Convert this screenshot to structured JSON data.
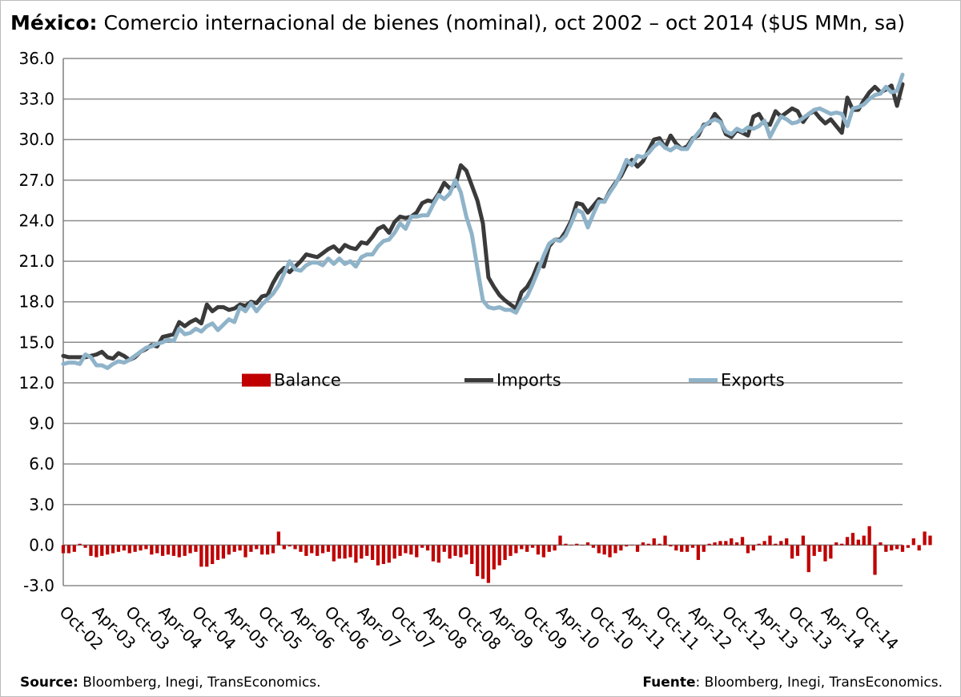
{
  "title_bold": "México:",
  "title_rest": " Comercio internacional de bienes (nominal), oct 2002 – oct 2014 ($US MMn, sa)",
  "source_left_label": "Source:",
  "source_left_text": " Bloomberg, Inegi, TransEconomics.",
  "source_right_label": "Fuente",
  "source_right_text": ": Bloomberg, Inegi, TransEconomics.",
  "colors": {
    "balance": "#c00000",
    "imports": "#3a3a3a",
    "exports": "#8fb3c9",
    "grid": "#8c8c8c"
  },
  "chart_data": {
    "type": "line+bar",
    "ylim": [
      -3,
      36
    ],
    "yticks": [
      "36.0",
      "33.0",
      "30.0",
      "27.0",
      "24.0",
      "21.0",
      "18.0",
      "15.0",
      "12.0",
      "9.0",
      "6.0",
      "3.0",
      "0.0",
      "-3.0"
    ],
    "ytick_values": [
      36,
      33,
      30,
      27,
      24,
      21,
      18,
      15,
      12,
      9,
      6,
      3,
      0,
      -3
    ],
    "xticks": [
      "Oct-02",
      "Apr-03",
      "Oct-03",
      "Apr-04",
      "Oct-04",
      "Apr-05",
      "Oct-05",
      "Apr-06",
      "Oct-06",
      "Apr-07",
      "Oct-07",
      "Apr-08",
      "Oct-08",
      "Apr-09",
      "Oct-09",
      "Apr-10",
      "Oct-10",
      "Apr-11",
      "Oct-11",
      "Apr-12",
      "Oct-12",
      "Apr-13",
      "Oct-13",
      "Apr-14",
      "Oct-14"
    ],
    "grid": true,
    "legend_placement": "center",
    "series": [
      {
        "name": "Balance",
        "type": "bar",
        "values": [
          -0.6,
          -0.6,
          -0.5,
          0.1,
          -0.2,
          -0.8,
          -0.9,
          -0.8,
          -0.7,
          -0.6,
          -0.5,
          -0.4,
          -0.6,
          -0.5,
          -0.4,
          -0.3,
          -0.7,
          -0.6,
          -0.8,
          -0.7,
          -0.8,
          -0.9,
          -0.8,
          -0.6,
          -0.5,
          -1.6,
          -1.6,
          -1.4,
          -1.1,
          -1.0,
          -0.7,
          -0.5,
          -0.4,
          -0.9,
          -0.5,
          -0.3,
          -0.7,
          -0.7,
          -0.6,
          1.0,
          -0.3,
          -0.1,
          -0.3,
          -0.5,
          -0.8,
          -0.6,
          -0.8,
          -0.6,
          -0.5,
          -1.2,
          -1.0,
          -1.0,
          -0.9,
          -1.3,
          -1.0,
          -0.8,
          -1.1,
          -1.5,
          -1.4,
          -1.3,
          -1.0,
          -0.8,
          -0.6,
          -0.7,
          -0.9,
          -0.2,
          -0.4,
          -1.2,
          -1.3,
          -0.5,
          -1.0,
          -0.8,
          -0.9,
          -0.7,
          -1.4,
          -2.3,
          -2.5,
          -2.8,
          -1.8,
          -1.5,
          -1.1,
          -0.8,
          -0.6,
          -0.3,
          -0.5,
          -0.2,
          -0.7,
          -0.9,
          -0.5,
          -0.4,
          0.7,
          0.1,
          0.0,
          0.1,
          0.0,
          0.2,
          -0.2,
          -0.6,
          -0.7,
          -0.9,
          -0.6,
          -0.4,
          -0.1,
          0.0,
          -0.5,
          0.2,
          0.1,
          0.5,
          0.1,
          0.7,
          -0.1,
          -0.4,
          -0.5,
          -0.5,
          -0.2,
          -1.1,
          -0.5,
          0.1,
          0.2,
          0.3,
          0.3,
          0.5,
          0.2,
          0.6,
          -0.6,
          -0.4,
          0.1,
          0.3,
          0.7,
          0.1,
          0.3,
          0.5,
          -1.0,
          -0.8,
          0.7,
          -2.0,
          -0.8,
          -0.5,
          -1.2,
          -1.0,
          0.2,
          0.1,
          0.6,
          0.9,
          0.4,
          0.7,
          1.4,
          -2.2,
          0.2,
          -0.5,
          -0.4,
          -0.3,
          -0.5,
          -0.2,
          0.5,
          -0.4,
          1.0,
          0.7
        ]
      },
      {
        "name": "Imports",
        "type": "line",
        "values": [
          14.0,
          13.9,
          13.9,
          13.9,
          13.9,
          14.0,
          14.1,
          14.3,
          13.9,
          13.8,
          14.2,
          14.0,
          13.7,
          13.9,
          14.3,
          14.5,
          14.8,
          14.7,
          15.4,
          15.5,
          15.6,
          16.5,
          16.2,
          16.5,
          16.7,
          16.4,
          17.8,
          17.3,
          17.6,
          17.6,
          17.4,
          17.5,
          17.8,
          17.7,
          18.0,
          17.9,
          18.4,
          18.5,
          19.4,
          20.1,
          20.5,
          20.2,
          20.6,
          21.0,
          21.5,
          21.4,
          21.3,
          21.6,
          21.9,
          22.1,
          21.7,
          22.2,
          22.0,
          21.9,
          22.4,
          22.3,
          22.8,
          23.4,
          23.6,
          23.1,
          23.9,
          24.3,
          24.2,
          24.3,
          24.6,
          25.3,
          25.5,
          25.4,
          26.0,
          26.8,
          26.4,
          26.6,
          28.1,
          27.7,
          26.6,
          25.5,
          23.8,
          19.8,
          19.1,
          18.5,
          18.1,
          17.8,
          17.5,
          18.7,
          19.1,
          19.8,
          20.8,
          20.6,
          22.1,
          22.6,
          22.6,
          23.2,
          24.0,
          25.3,
          25.2,
          24.6,
          25.1,
          25.6,
          25.4,
          26.2,
          26.8,
          27.3,
          28.1,
          28.5,
          28.0,
          28.4,
          29.2,
          30.0,
          30.1,
          29.4,
          30.3,
          29.7,
          29.3,
          29.5,
          30.1,
          30.3,
          31.1,
          31.2,
          31.9,
          31.4,
          30.4,
          30.2,
          30.7,
          30.5,
          30.3,
          31.7,
          31.9,
          31.2,
          31.1,
          32.1,
          31.7,
          32.0,
          32.3,
          32.1,
          31.3,
          31.9,
          32.1,
          31.6,
          31.2,
          31.5,
          31.0,
          30.5,
          33.1,
          32.2,
          32.2,
          32.9,
          33.5,
          33.9,
          33.5,
          33.7,
          34.0,
          32.5,
          34.1
        ]
      },
      {
        "name": "Exports",
        "type": "line",
        "values": [
          13.4,
          13.5,
          13.5,
          13.4,
          14.1,
          13.9,
          13.3,
          13.3,
          13.1,
          13.4,
          13.6,
          13.5,
          13.7,
          14.0,
          14.3,
          14.6,
          14.7,
          14.9,
          15.0,
          15.2,
          15.1,
          16.0,
          15.6,
          15.7,
          16.0,
          15.8,
          16.2,
          16.4,
          15.9,
          16.3,
          16.7,
          16.5,
          17.6,
          17.3,
          17.9,
          17.3,
          17.8,
          18.2,
          18.6,
          19.2,
          20.1,
          21.0,
          20.4,
          20.3,
          20.7,
          20.9,
          20.9,
          20.7,
          21.2,
          20.8,
          21.2,
          20.8,
          21.0,
          20.6,
          21.3,
          21.5,
          21.5,
          22.1,
          22.5,
          22.6,
          23.1,
          23.8,
          23.4,
          24.3,
          24.3,
          24.4,
          24.4,
          25.2,
          25.9,
          25.6,
          26.0,
          27.0,
          26.1,
          24.3,
          23.0,
          20.5,
          18.1,
          17.6,
          17.5,
          17.6,
          17.4,
          17.4,
          17.2,
          18.0,
          18.4,
          19.3,
          20.3,
          21.4,
          22.3,
          22.6,
          22.5,
          22.9,
          23.8,
          24.8,
          24.6,
          23.5,
          24.5,
          25.4,
          25.4,
          26.1,
          26.7,
          27.5,
          28.5,
          28.1,
          28.8,
          28.7,
          29.0,
          29.5,
          29.8,
          29.4,
          29.2,
          29.5,
          29.3,
          29.3,
          30.0,
          30.5,
          31.0,
          31.3,
          31.5,
          31.3,
          30.6,
          30.4,
          30.8,
          30.6,
          30.9,
          30.8,
          31.0,
          31.4,
          30.2,
          31.0,
          31.7,
          31.5,
          31.2,
          31.3,
          31.6,
          31.9,
          32.2,
          32.3,
          32.1,
          31.9,
          32.0,
          31.9,
          31.0,
          32.3,
          32.4,
          32.6,
          33.0,
          33.3,
          33.4,
          33.9,
          33.5,
          33.6,
          34.8
        ]
      }
    ]
  }
}
